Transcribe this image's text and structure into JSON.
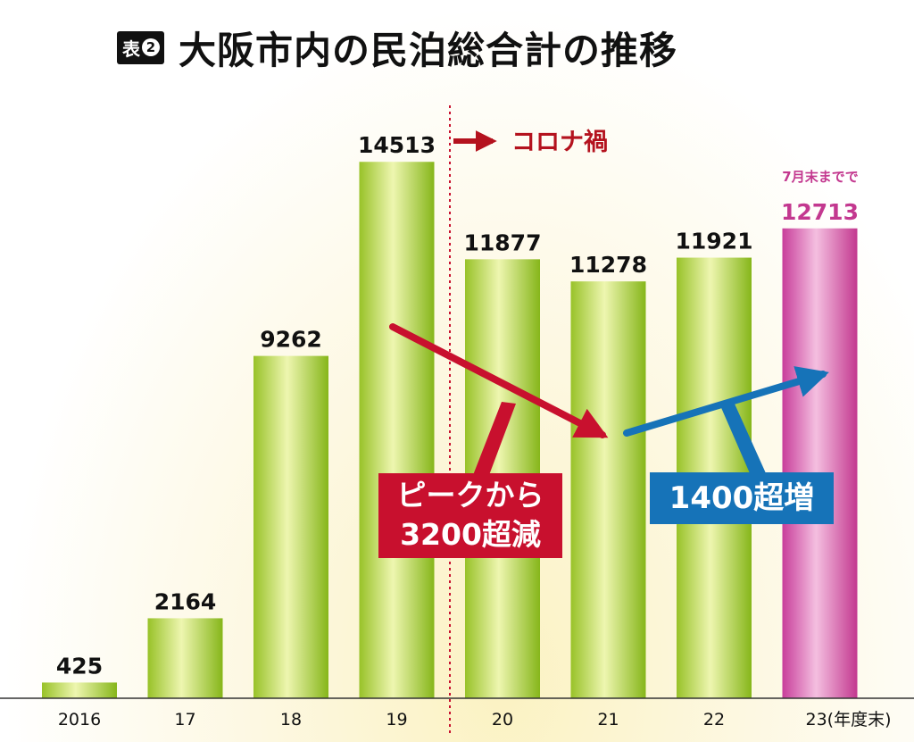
{
  "chart_data": {
    "type": "bar",
    "title": "大阪市内の民泊総合計の推移",
    "badge": {
      "label": "表",
      "number": "2"
    },
    "categories": [
      "2016",
      "17",
      "18",
      "19",
      "20",
      "21",
      "22",
      "23(年度末)"
    ],
    "values": [
      425,
      2164,
      9262,
      14513,
      11877,
      11278,
      11921,
      12713
    ],
    "highlight_index": 7,
    "ylim": [
      0,
      16500
    ],
    "xlabel": "",
    "ylabel": "",
    "grid": false,
    "colors": {
      "normal": "#9cc42e",
      "highlight": "#c3388f",
      "decrease": "#c8102e",
      "increase": "#1673b8"
    },
    "annotations": {
      "corona": "コロナ禍",
      "partial_note": "7月末までで",
      "decrease_line1": "ピークから",
      "decrease_line2": "3200超減",
      "increase": "1400超増"
    }
  }
}
